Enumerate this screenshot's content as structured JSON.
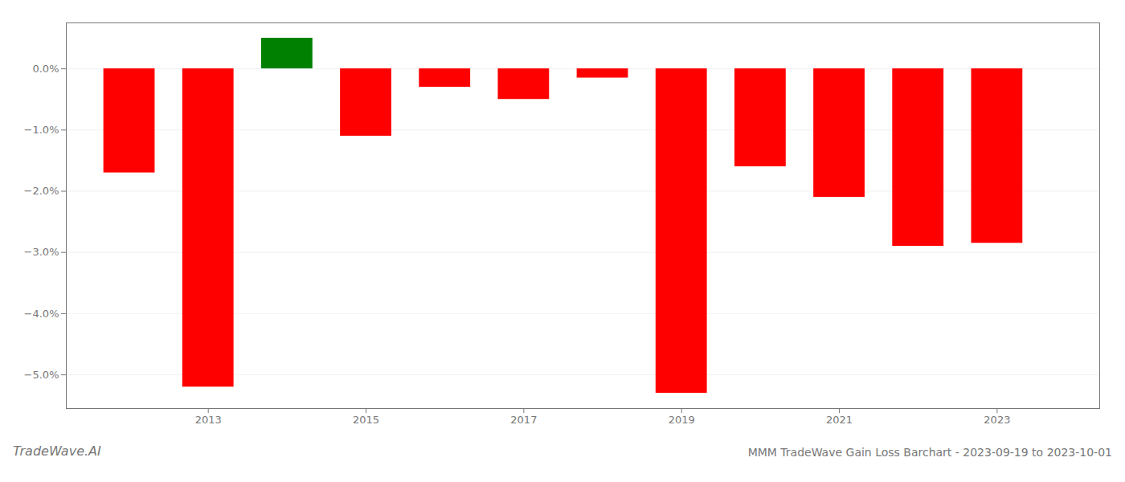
{
  "chart_data": {
    "type": "bar",
    "title": "MMM TradeWave Gain Loss Barchart - 2023-09-19 to 2023-10-01",
    "annotations": [
      "TradeWave.AI"
    ],
    "x": [
      2012,
      2013,
      2014,
      2015,
      2016,
      2017,
      2018,
      2019,
      2020,
      2021,
      2022,
      2023
    ],
    "values": [
      -1.7,
      -5.2,
      0.5,
      -1.1,
      -0.3,
      -0.5,
      -0.15,
      -5.3,
      -1.6,
      -2.1,
      -2.9,
      -2.85
    ],
    "colors": [
      "#ff0000",
      "#ff0000",
      "#008000",
      "#ff0000",
      "#ff0000",
      "#ff0000",
      "#ff0000",
      "#ff0000",
      "#ff0000",
      "#ff0000",
      "#ff0000",
      "#ff0000"
    ],
    "xlim": [
      2011.2,
      2024.3
    ],
    "xticks": [
      2013,
      2015,
      2017,
      2019,
      2021,
      2023
    ],
    "ylim": [
      -5.55,
      0.75
    ],
    "yticks": [
      {
        "value": 0.0,
        "label": "0.0%"
      },
      {
        "value": -1.0,
        "label": "−1.0%"
      },
      {
        "value": -2.0,
        "label": "−2.0%"
      },
      {
        "value": -3.0,
        "label": "−3.0%"
      },
      {
        "value": -4.0,
        "label": "−4.0%"
      },
      {
        "value": -5.0,
        "label": "−5.0%"
      }
    ],
    "grid": true
  }
}
